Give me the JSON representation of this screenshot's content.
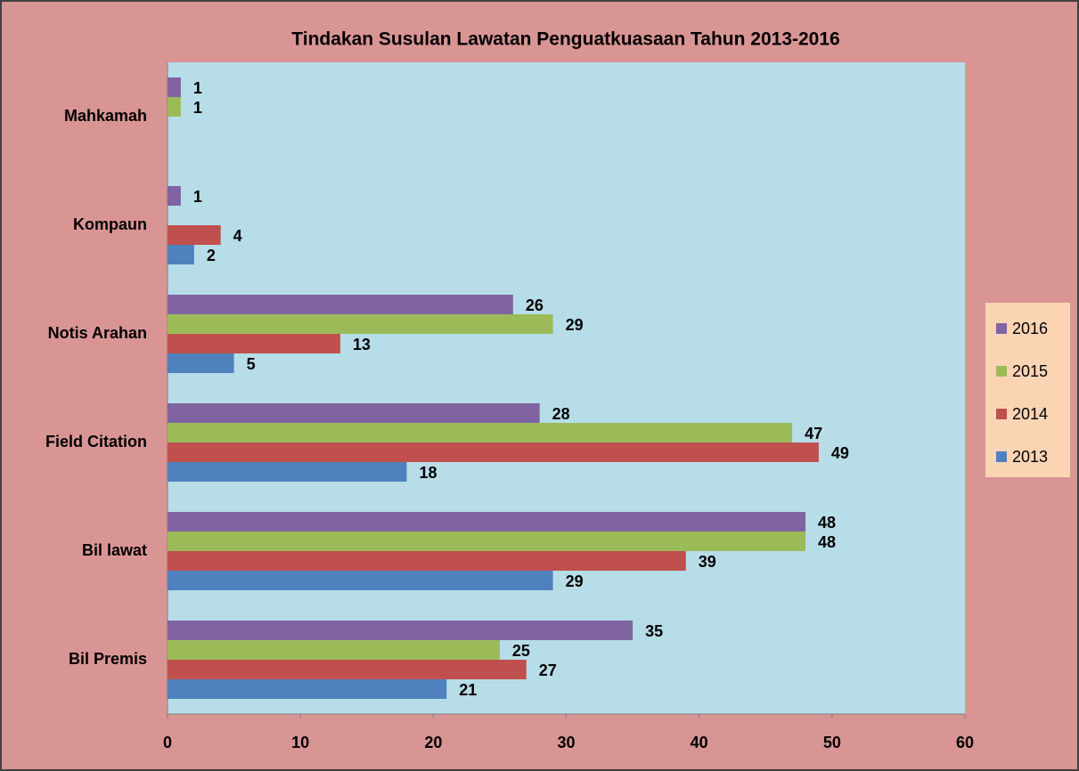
{
  "chart_data": {
    "type": "bar",
    "orientation": "horizontal",
    "title": "Tindakan Susulan Lawatan Penguatkuasaan Tahun 2013-2016",
    "categories": [
      "Bil Premis",
      "Bil lawat",
      "Field Citation",
      "Notis Arahan",
      "Kompaun",
      "Mahkamah"
    ],
    "series": [
      {
        "name": "2013",
        "color": "#4f81bd",
        "values": [
          21,
          29,
          18,
          5,
          2,
          null
        ]
      },
      {
        "name": "2014",
        "color": "#c0504d",
        "values": [
          27,
          39,
          49,
          13,
          4,
          null
        ]
      },
      {
        "name": "2015",
        "color": "#9bbb59",
        "values": [
          25,
          48,
          47,
          29,
          null,
          1
        ]
      },
      {
        "name": "2016",
        "color": "#8064a2",
        "values": [
          35,
          48,
          28,
          26,
          1,
          1
        ]
      }
    ],
    "xlim": [
      0,
      60
    ],
    "xticks": [
      0,
      10,
      20,
      30,
      40,
      50,
      60
    ],
    "grid": false,
    "legend": "right"
  }
}
